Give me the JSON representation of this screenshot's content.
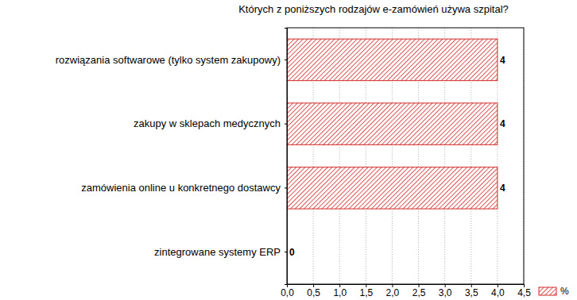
{
  "chart_data": {
    "type": "bar",
    "title": "Których z poniższych rodzajów e-zamówień używa szpital?",
    "orientation": "horizontal",
    "categories": [
      "rozwiązania softwarowe (tylko system zakupowy)",
      "zakupy w sklepach medycznych",
      "zamówienia online u konkretnego dostawcy",
      "zintegrowane systemy ERP"
    ],
    "series": [
      {
        "name": "%",
        "color": "#d42a2a",
        "values": [
          4,
          4,
          4,
          0
        ]
      }
    ],
    "xlim": [
      0,
      4.5
    ],
    "xticks": [
      {
        "value": 0,
        "label": "0,0"
      },
      {
        "value": 0.5,
        "label": "0,5"
      },
      {
        "value": 1,
        "label": "1,0"
      },
      {
        "value": 1.5,
        "label": "1,5"
      },
      {
        "value": 2,
        "label": "2,0"
      },
      {
        "value": 2.5,
        "label": "2,5"
      },
      {
        "value": 3,
        "label": "3,0"
      },
      {
        "value": 3.5,
        "label": "3,5"
      },
      {
        "value": 4,
        "label": "4,0"
      },
      {
        "value": 4.5,
        "label": "4,5"
      }
    ],
    "grid": true,
    "legend": "bottom right",
    "data_labels": true
  }
}
